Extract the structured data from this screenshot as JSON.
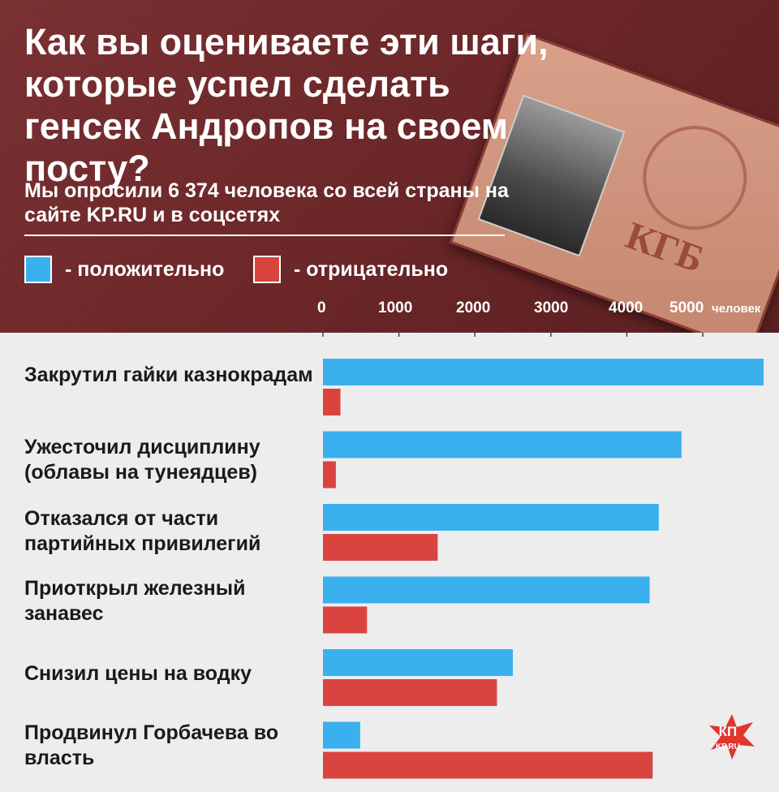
{
  "title": "Как вы оцениваете эти шаги, которые успел сделать генсек Андропов на своем посту?",
  "subtitle": "Мы опросили 6 374 человека со всей страны на сайте KP.RU и в соцсетях",
  "passport_text": "КГБ",
  "logo": {
    "line1": "КП",
    "line2": "KP.RU"
  },
  "chart_data": {
    "type": "bar",
    "orientation": "horizontal",
    "unit_label": "человек",
    "xlim": [
      0,
      5800
    ],
    "ticks": [
      "0",
      "1000",
      "2000",
      "3000",
      "4000",
      "5000"
    ],
    "tick_values": [
      0,
      1000,
      2000,
      3000,
      4000,
      5000
    ],
    "categories": [
      "Закрутил гайки казнокрадам",
      "Ужесточил дисциплину (облавы на тунеядцев)",
      "Отказался от части партийных привилегий",
      "Приоткрыл железный занавес",
      "Снизил цены на водку",
      "Продвинул Горбачева во власть"
    ],
    "series": [
      {
        "name": "- положительно",
        "color": "#3ab0ef",
        "values": [
          5800,
          4720,
          4420,
          4300,
          2500,
          490
        ]
      },
      {
        "name": "- отрицательно",
        "color": "#d9443f",
        "values": [
          230,
          170,
          1510,
          580,
          2290,
          4340
        ]
      }
    ]
  }
}
